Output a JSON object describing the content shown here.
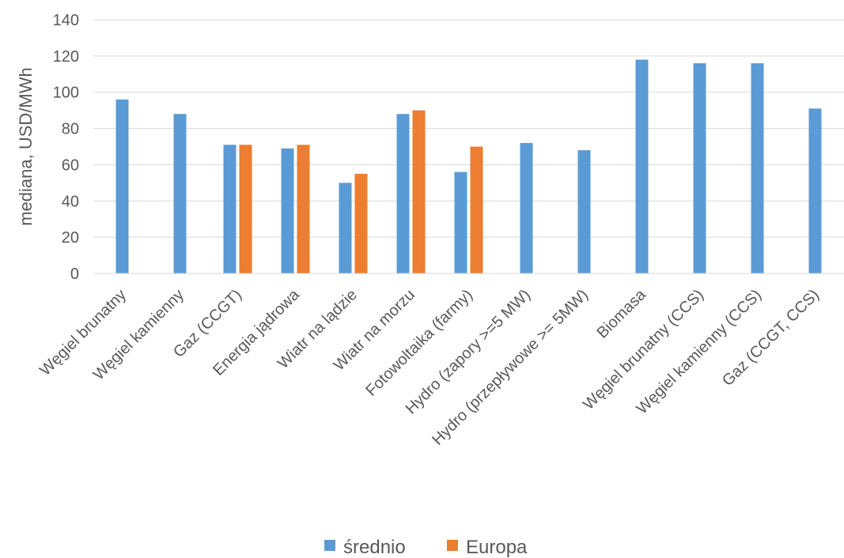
{
  "chart_data": {
    "type": "bar",
    "ylabel": "mediana, USD/MWh",
    "xlabel": "",
    "ylim": [
      0,
      140
    ],
    "yticks": [
      0,
      20,
      40,
      60,
      80,
      100,
      120,
      140
    ],
    "grid": true,
    "legend_position": "bottom",
    "categories": [
      "Węgiel brunatny",
      "Węgiel kamienny",
      "Gaz (CCGT)",
      "Energia jądrowa",
      "Wiatr na lądzie",
      "Wiatr na morzu",
      "Fotowoltaika (farmy)",
      "Hydro (zapory >=5 MW)",
      "Hydro (przepływowe >= 5MW)",
      "Biomasa",
      "Węgiel brunatny (CCS)",
      "Węgiel kamienny (CCS)",
      "Gaz (CCGT, CCS)"
    ],
    "series": [
      {
        "name": "średnio",
        "color": "#5B9BD5",
        "values": [
          96,
          88,
          71,
          69,
          50,
          88,
          56,
          72,
          68,
          118,
          116,
          116,
          91
        ]
      },
      {
        "name": "Europa",
        "color": "#ED7D31",
        "values": [
          null,
          null,
          71,
          71,
          55,
          90,
          70,
          null,
          null,
          null,
          null,
          null,
          null
        ]
      }
    ]
  }
}
